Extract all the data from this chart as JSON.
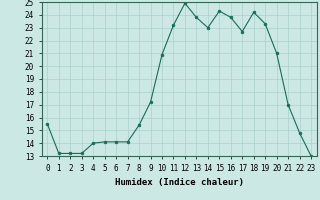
{
  "xlabel": "Humidex (Indice chaleur)",
  "ylabel": "",
  "x_values": [
    0,
    1,
    2,
    3,
    4,
    5,
    6,
    7,
    8,
    9,
    10,
    11,
    12,
    13,
    14,
    15,
    16,
    17,
    18,
    19,
    20,
    21,
    22,
    23
  ],
  "y_values": [
    15.5,
    13.2,
    13.2,
    13.2,
    14.0,
    14.1,
    14.1,
    14.1,
    15.4,
    17.2,
    20.9,
    23.2,
    24.9,
    23.8,
    23.0,
    24.3,
    23.8,
    22.7,
    24.2,
    23.3,
    21.0,
    17.0,
    14.8,
    13.0
  ],
  "line_color": "#1a6b5a",
  "marker": "o",
  "marker_size": 2.0,
  "bg_color": "#cce8e4",
  "grid_color": "#aad0cc",
  "ylim": [
    13,
    25
  ],
  "xlim": [
    -0.5,
    23.5
  ],
  "yticks": [
    13,
    14,
    15,
    16,
    17,
    18,
    19,
    20,
    21,
    22,
    23,
    24,
    25
  ],
  "xticks": [
    0,
    1,
    2,
    3,
    4,
    5,
    6,
    7,
    8,
    9,
    10,
    11,
    12,
    13,
    14,
    15,
    16,
    17,
    18,
    19,
    20,
    21,
    22,
    23
  ],
  "label_fontsize": 6.5,
  "tick_fontsize": 5.5
}
